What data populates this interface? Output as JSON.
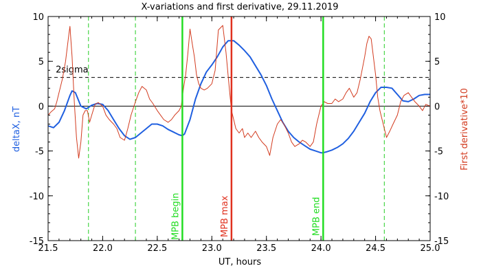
{
  "chart_data": {
    "type": "line",
    "title": "X-variations and first derivative, 29.11.2019",
    "xlabel": "UT, hours",
    "ylabel_left": "deltaX, nT",
    "ylabel_right": "First derivative*10",
    "xlim": [
      21.5,
      25.0
    ],
    "ylim": [
      -15,
      10
    ],
    "x_ticks": [
      "21.5",
      "22.0",
      "22.5",
      "23.0",
      "23.5",
      "24.0",
      "24.5",
      "25.0"
    ],
    "y_ticks_left": [
      "10",
      "5",
      "0",
      "-5",
      "-10",
      "-15"
    ],
    "y_ticks_right": [
      "10",
      "5",
      "0",
      "-5",
      "-10",
      "-15"
    ],
    "colors": {
      "deltaX": "#1f5fe0",
      "derivative": "#d23a1e",
      "mpb_markers": "#22dd22",
      "mpb_max": "#e0301e",
      "sigma_line": "#000000",
      "event_markers": "#22cc22"
    },
    "series": [
      {
        "key": "deltaX",
        "color": "#1f5fe0",
        "x": [
          21.5,
          21.55,
          21.6,
          21.65,
          21.7,
          21.72,
          21.75,
          21.8,
          21.85,
          21.9,
          21.95,
          22.0,
          22.05,
          22.1,
          22.15,
          22.2,
          22.25,
          22.3,
          22.35,
          22.4,
          22.45,
          22.5,
          22.55,
          22.6,
          22.65,
          22.7,
          22.73,
          22.75,
          22.8,
          22.85,
          22.9,
          22.95,
          23.0,
          23.05,
          23.1,
          23.15,
          23.2,
          23.25,
          23.3,
          23.35,
          23.4,
          23.45,
          23.5,
          23.55,
          23.6,
          23.65,
          23.7,
          23.75,
          23.8,
          23.85,
          23.9,
          23.95,
          24.0,
          24.02,
          24.05,
          24.1,
          24.15,
          24.2,
          24.25,
          24.3,
          24.35,
          24.4,
          24.45,
          24.5,
          24.55,
          24.6,
          24.65,
          24.7,
          24.75,
          24.8,
          24.85,
          24.9,
          24.95,
          25.0
        ],
        "y": [
          -2.2,
          -2.4,
          -1.8,
          -0.5,
          1.2,
          1.7,
          1.5,
          0.0,
          -0.3,
          0.1,
          0.3,
          0.2,
          -0.5,
          -1.5,
          -2.5,
          -3.3,
          -3.7,
          -3.5,
          -3.0,
          -2.5,
          -2.0,
          -2.0,
          -2.2,
          -2.6,
          -2.9,
          -3.2,
          -3.3,
          -3.1,
          -1.5,
          0.8,
          2.5,
          3.8,
          4.6,
          5.5,
          6.6,
          7.3,
          7.3,
          6.8,
          6.2,
          5.5,
          4.5,
          3.5,
          2.3,
          0.8,
          -0.5,
          -1.8,
          -2.8,
          -3.5,
          -4.0,
          -4.4,
          -4.8,
          -5.0,
          -5.2,
          -5.2,
          -5.1,
          -4.9,
          -4.6,
          -4.2,
          -3.6,
          -2.8,
          -1.8,
          -0.8,
          0.5,
          1.5,
          2.1,
          2.1,
          2.0,
          1.3,
          0.6,
          0.5,
          0.8,
          1.2,
          1.3,
          1.3
        ]
      },
      {
        "key": "derivative",
        "color": "#d23a1e",
        "x": [
          21.5,
          21.53,
          21.56,
          21.58,
          21.6,
          21.63,
          21.66,
          21.69,
          21.7,
          21.72,
          21.74,
          21.76,
          21.78,
          21.8,
          21.82,
          21.84,
          21.86,
          21.88,
          21.9,
          21.93,
          21.96,
          22.0,
          22.03,
          22.06,
          22.1,
          22.13,
          22.16,
          22.2,
          22.23,
          22.26,
          22.3,
          22.33,
          22.36,
          22.4,
          22.43,
          22.46,
          22.5,
          22.53,
          22.56,
          22.6,
          22.63,
          22.66,
          22.7,
          22.72,
          22.74,
          22.76,
          22.78,
          22.8,
          22.82,
          22.84,
          22.86,
          22.88,
          22.9,
          22.93,
          22.96,
          23.0,
          23.03,
          23.06,
          23.1,
          23.13,
          23.16,
          23.18,
          23.2,
          23.22,
          23.25,
          23.28,
          23.3,
          23.33,
          23.36,
          23.4,
          23.43,
          23.46,
          23.5,
          23.53,
          23.56,
          23.6,
          23.63,
          23.66,
          23.7,
          23.73,
          23.76,
          23.8,
          23.83,
          23.86,
          23.9,
          23.93,
          23.96,
          24.0,
          24.03,
          24.06,
          24.1,
          24.13,
          24.16,
          24.2,
          24.23,
          24.26,
          24.3,
          24.33,
          24.36,
          24.4,
          24.42,
          24.44,
          24.46,
          24.48,
          24.5,
          24.52,
          24.54,
          24.56,
          24.58,
          24.6,
          24.63,
          24.66,
          24.7,
          24.73,
          24.76,
          24.8,
          24.83,
          24.86,
          24.9,
          24.93,
          24.96,
          25.0
        ],
        "y": [
          -1.0,
          -0.6,
          -0.3,
          0.5,
          1.5,
          3.0,
          5.0,
          8.0,
          8.9,
          5.5,
          0.5,
          -3.5,
          -5.8,
          -4.0,
          -1.0,
          -0.5,
          -0.5,
          -1.8,
          -1.0,
          0.2,
          0.4,
          0.0,
          -1.0,
          -1.5,
          -2.0,
          -2.5,
          -3.5,
          -3.8,
          -2.5,
          -1.0,
          0.5,
          1.5,
          2.2,
          1.8,
          0.8,
          0.3,
          -0.5,
          -1.0,
          -1.5,
          -1.8,
          -1.5,
          -1.0,
          -0.5,
          0.0,
          2.0,
          3.5,
          5.8,
          8.6,
          7.0,
          5.5,
          3.5,
          2.5,
          2.0,
          1.8,
          2.0,
          2.5,
          4.0,
          8.5,
          9.0,
          6.0,
          2.0,
          -0.5,
          -1.5,
          -2.5,
          -3.0,
          -2.5,
          -3.5,
          -3.0,
          -3.5,
          -2.8,
          -3.5,
          -4.0,
          -4.5,
          -5.5,
          -3.5,
          -2.0,
          -1.5,
          -2.0,
          -3.0,
          -4.0,
          -4.5,
          -4.2,
          -3.8,
          -4.0,
          -4.5,
          -4.0,
          -2.0,
          0.0,
          0.5,
          0.3,
          0.3,
          0.8,
          0.5,
          0.8,
          1.5,
          2.0,
          1.0,
          1.5,
          3.0,
          5.5,
          7.0,
          7.8,
          7.5,
          5.5,
          3.5,
          1.0,
          -0.5,
          -1.5,
          -2.5,
          -3.5,
          -2.8,
          -2.0,
          -1.0,
          0.5,
          1.2,
          1.5,
          1.0,
          0.5,
          0.0,
          -0.5,
          0.2,
          0.0
        ]
      }
    ],
    "sigma_level": 3.2,
    "sigma_label": "2sigma",
    "event_lines_dashed": [
      21.87,
      22.3,
      24.58
    ],
    "markers": [
      {
        "x": 22.73,
        "label": "MPB begin",
        "color": "#22dd22"
      },
      {
        "x": 23.18,
        "label": "MPB max",
        "color": "#e0301e"
      },
      {
        "x": 24.02,
        "label": "MPB end",
        "color": "#22dd22"
      }
    ],
    "legend": "none",
    "grid": false
  }
}
